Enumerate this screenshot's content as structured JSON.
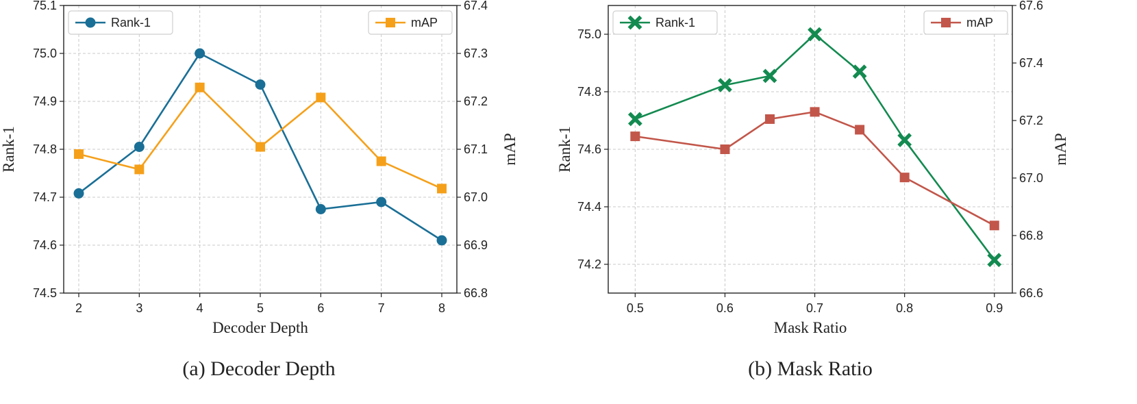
{
  "chart_data": [
    {
      "type": "line",
      "caption": "(a) Decoder Depth",
      "xlabel": "Decoder Depth",
      "ylabel": "Rank-1",
      "y2label": "mAP",
      "x": [
        2,
        3,
        4,
        5,
        6,
        7,
        8
      ],
      "x_tick_labels": [
        "2",
        "3",
        "4",
        "5",
        "6",
        "7",
        "8"
      ],
      "ylim": [
        74.5,
        75.1
      ],
      "y_ticks": [
        74.5,
        74.6,
        74.7,
        74.8,
        74.9,
        75.0,
        75.1
      ],
      "y_tick_labels": [
        "74.5",
        "74.6",
        "74.7",
        "74.8",
        "74.9",
        "75.0",
        "75.1"
      ],
      "y2lim": [
        66.8,
        67.4
      ],
      "y2_ticks": [
        66.8,
        66.9,
        67.0,
        67.1,
        67.2,
        67.3,
        67.4
      ],
      "y2_tick_labels": [
        "66.8",
        "66.9",
        "67.0",
        "67.1",
        "67.2",
        "67.3",
        "67.4"
      ],
      "grid": true,
      "series": [
        {
          "name": "Rank-1",
          "axis": "left",
          "color": "#1a6f96",
          "marker": "circle",
          "legend": "upper-left",
          "values": [
            74.708,
            74.805,
            75.0,
            74.935,
            74.675,
            74.69,
            74.61
          ]
        },
        {
          "name": "mAP",
          "axis": "right",
          "color": "#f5a01a",
          "marker": "square",
          "legend": "upper-right",
          "values": [
            67.09,
            67.058,
            67.229,
            67.105,
            67.208,
            67.075,
            67.018
          ]
        }
      ]
    },
    {
      "type": "line",
      "caption": "(b) Mask Ratio",
      "xlabel": "Mask Ratio",
      "ylabel": "Rank-1",
      "y2label": "mAP",
      "x": [
        0.5,
        0.6,
        0.65,
        0.7,
        0.75,
        0.8,
        0.9
      ],
      "x_tick_values": [
        0.5,
        0.6,
        0.7,
        0.8,
        0.9
      ],
      "x_tick_labels": [
        "0.5",
        "0.6",
        "0.7",
        "0.8",
        "0.9"
      ],
      "xlim": [
        0.47,
        0.92
      ],
      "ylim": [
        74.1,
        75.1
      ],
      "y_ticks": [
        74.2,
        74.4,
        74.6,
        74.8,
        75.0
      ],
      "y_tick_labels": [
        "74.2",
        "74.4",
        "74.6",
        "74.8",
        "75.0"
      ],
      "y2lim": [
        66.6,
        67.6
      ],
      "y2_ticks": [
        66.6,
        66.8,
        67.0,
        67.2,
        67.4,
        67.6
      ],
      "y2_tick_labels": [
        "66.6",
        "66.8",
        "67.0",
        "67.2",
        "67.4",
        "67.6"
      ],
      "grid": true,
      "series": [
        {
          "name": "Rank-1",
          "axis": "left",
          "color": "#138a50",
          "marker": "x",
          "legend": "upper-left",
          "values": [
            74.705,
            74.823,
            74.855,
            75.0,
            74.87,
            74.632,
            74.215
          ]
        },
        {
          "name": "mAP",
          "axis": "right",
          "color": "#c2564a",
          "marker": "square",
          "legend": "upper-right",
          "values": [
            67.145,
            67.1,
            67.205,
            67.23,
            67.168,
            67.002,
            66.835
          ]
        }
      ]
    }
  ]
}
